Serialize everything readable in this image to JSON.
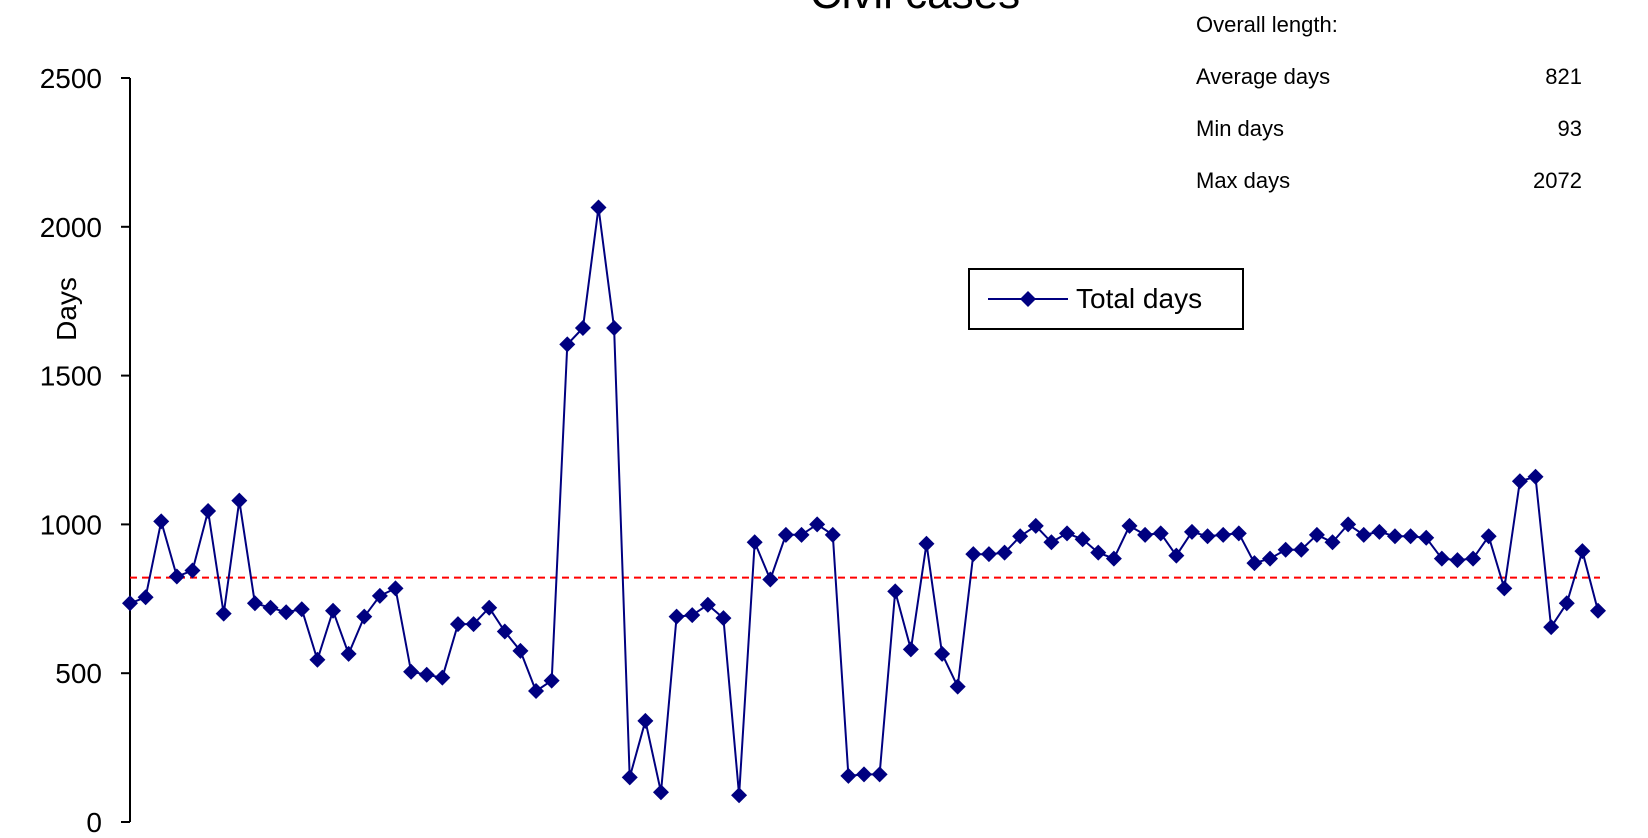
{
  "chart_data": {
    "type": "line",
    "title": "Civil cases",
    "xlabel": "",
    "ylabel": "Days",
    "ylim": [
      0,
      2500
    ],
    "yticks": [
      "0",
      "500",
      "1000",
      "1500",
      "2000",
      "2500"
    ],
    "grid": false,
    "legend_placement": "center-right",
    "series": [
      {
        "name": "Total days",
        "color": "#000080",
        "marker": "diamond",
        "values": [
          735,
          755,
          1010,
          825,
          845,
          1045,
          700,
          1080,
          735,
          720,
          705,
          715,
          545,
          710,
          565,
          690,
          760,
          785,
          505,
          495,
          485,
          665,
          665,
          720,
          640,
          575,
          440,
          475,
          1605,
          1660,
          2065,
          1660,
          150,
          340,
          100,
          690,
          695,
          730,
          685,
          90,
          940,
          815,
          965,
          965,
          1000,
          965,
          155,
          160,
          160,
          775,
          580,
          935,
          565,
          455,
          900,
          900,
          905,
          960,
          995,
          940,
          970,
          950,
          905,
          885,
          995,
          965,
          970,
          895,
          975,
          960,
          965,
          970,
          870,
          885,
          915,
          915,
          965,
          940,
          1000,
          965,
          975,
          960,
          960,
          955,
          885,
          880,
          885,
          960,
          785,
          1145,
          1160,
          655,
          735,
          910,
          710
        ]
      }
    ],
    "reference_line": {
      "value": 821,
      "color": "#ff0000",
      "style": "dashed"
    }
  },
  "stats": {
    "header": "Overall length:",
    "rows": [
      {
        "label": "Average days",
        "value": "821"
      },
      {
        "label": "Min days",
        "value": "93"
      },
      {
        "label": "Max days",
        "value": "2072"
      }
    ]
  }
}
